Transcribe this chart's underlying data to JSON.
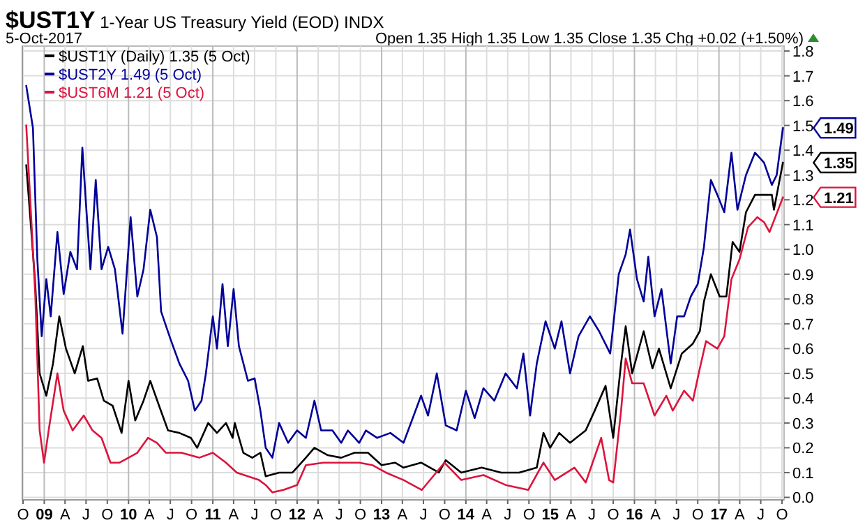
{
  "chart_data": {
    "type": "line",
    "title": "$UST1Y 1-Year US Treasury Yield (EOD) INDX",
    "subtitle": "5-Oct-2017",
    "annotations": [
      "Open 1.35 High 1.35 Low 1.35 Close 1.35 Chg +0.02 (+1.50%)",
      {
        "text": "1.49",
        "x": "2017-10-05",
        "y": 1.49
      },
      {
        "text": "1.35",
        "x": "2017-10-05",
        "y": 1.35
      },
      {
        "text": "1.21",
        "x": "2017-10-05",
        "y": 1.21
      }
    ],
    "legend": "top left",
    "grid": true,
    "line_style": "solid",
    "xlim": [
      "2008-09-28",
      "2017-10-10"
    ],
    "xticks": [
      {
        "value": "2008-10-01",
        "label": "O"
      },
      {
        "value": "2009-01-01",
        "label": "09"
      },
      {
        "value": "2009-04-01",
        "label": "A"
      },
      {
        "value": "2009-07-01",
        "label": "J"
      },
      {
        "value": "2009-10-01",
        "label": "O"
      },
      {
        "value": "2010-01-01",
        "label": "10"
      },
      {
        "value": "2010-04-01",
        "label": "A"
      },
      {
        "value": "2010-07-01",
        "label": "J"
      },
      {
        "value": "2010-10-01",
        "label": "O"
      },
      {
        "value": "2011-01-01",
        "label": "11"
      },
      {
        "value": "2011-04-01",
        "label": "A"
      },
      {
        "value": "2011-07-01",
        "label": "J"
      },
      {
        "value": "2011-10-01",
        "label": "O"
      },
      {
        "value": "2012-01-01",
        "label": "12"
      },
      {
        "value": "2012-04-01",
        "label": "A"
      },
      {
        "value": "2012-07-01",
        "label": "J"
      },
      {
        "value": "2012-10-01",
        "label": "O"
      },
      {
        "value": "2013-01-01",
        "label": "13"
      },
      {
        "value": "2013-04-01",
        "label": "A"
      },
      {
        "value": "2013-07-01",
        "label": "J"
      },
      {
        "value": "2013-10-01",
        "label": "O"
      },
      {
        "value": "2014-01-01",
        "label": "14"
      },
      {
        "value": "2014-04-01",
        "label": "A"
      },
      {
        "value": "2014-07-01",
        "label": "J"
      },
      {
        "value": "2014-10-01",
        "label": "O"
      },
      {
        "value": "2015-01-01",
        "label": "15"
      },
      {
        "value": "2015-04-01",
        "label": "A"
      },
      {
        "value": "2015-07-01",
        "label": "J"
      },
      {
        "value": "2015-10-01",
        "label": "O"
      },
      {
        "value": "2016-01-01",
        "label": "16"
      },
      {
        "value": "2016-04-01",
        "label": "A"
      },
      {
        "value": "2016-07-01",
        "label": "J"
      },
      {
        "value": "2016-10-01",
        "label": "O"
      },
      {
        "value": "2017-01-01",
        "label": "17"
      },
      {
        "value": "2017-04-01",
        "label": "A"
      },
      {
        "value": "2017-07-01",
        "label": "J"
      },
      {
        "value": "2017-10-01",
        "label": "O"
      }
    ],
    "ylim": [
      -0.01,
      1.82
    ],
    "yticks": [
      {
        "value": 0,
        "label": "0.0"
      },
      0.1,
      0.2,
      0.3,
      0.4,
      0.5,
      0.6,
      0.7,
      0.8,
      0.9,
      {
        "value": 1,
        "label": "1.0"
      },
      1.1,
      1.2,
      1.3,
      1.4,
      1.5,
      1.6,
      1.7,
      1.8
    ],
    "series": [
      {
        "name": "$UST1Y (Daily) 1.35 (5 Oct)",
        "color": "#000000",
        "x": [
          "2008-10-15",
          "2008-11-03",
          "2008-11-23",
          "2008-12-12",
          "2009-01-10",
          "2009-02-08",
          "2009-03-07",
          "2009-04-05",
          "2009-05-13",
          "2009-06-17",
          "2009-07-10",
          "2009-08-18",
          "2009-09-16",
          "2009-10-24",
          "2009-12-02",
          "2010-01-01",
          "2010-01-30",
          "2010-03-07",
          "2010-04-05",
          "2010-05-13",
          "2010-06-21",
          "2010-08-09",
          "2010-09-28",
          "2010-10-25",
          "2010-12-12",
          "2011-01-19",
          "2011-02-27",
          "2011-03-28",
          "2011-04-06",
          "2011-05-13",
          "2011-06-21",
          "2011-07-26",
          "2011-08-18",
          "2011-10-15",
          "2011-12-12",
          "2012-02-08",
          "2012-03-16",
          "2012-05-13",
          "2012-07-10",
          "2012-09-06",
          "2012-11-03",
          "2013-01-01",
          "2013-02-28",
          "2013-04-06",
          "2013-06-21",
          "2013-09-06",
          "2013-10-06",
          "2013-12-12",
          "2014-03-10",
          "2014-06-03",
          "2014-08-19",
          "2014-11-04",
          "2014-12-03",
          "2015-01-01",
          "2015-02-09",
          "2015-03-28",
          "2015-06-04",
          "2015-07-13",
          "2015-08-29",
          "2015-10-01",
          "2015-11-04",
          "2015-11-24",
          "2015-12-22",
          "2016-02-10",
          "2016-03-19",
          "2016-04-16",
          "2016-06-06",
          "2016-07-24",
          "2016-09-10",
          "2016-10-10",
          "2016-10-28",
          "2016-11-27",
          "2017-01-04",
          "2017-02-02",
          "2017-03-01",
          "2017-03-31",
          "2017-04-28",
          "2017-06-06",
          "2017-07-15",
          "2017-08-18",
          "2017-08-27",
          "2017-10-05"
        ],
        "values": [
          1.34,
          1.11,
          0.86,
          0.5,
          0.41,
          0.54,
          0.73,
          0.6,
          0.5,
          0.61,
          0.47,
          0.48,
          0.39,
          0.37,
          0.26,
          0.47,
          0.31,
          0.39,
          0.47,
          0.37,
          0.27,
          0.26,
          0.24,
          0.2,
          0.3,
          0.26,
          0.3,
          0.24,
          0.3,
          0.18,
          0.16,
          0.18,
          0.085,
          0.1,
          0.1,
          0.16,
          0.2,
          0.17,
          0.16,
          0.18,
          0.18,
          0.13,
          0.14,
          0.12,
          0.14,
          0.1,
          0.15,
          0.1,
          0.12,
          0.1,
          0.1,
          0.12,
          0.26,
          0.2,
          0.26,
          0.22,
          0.27,
          0.35,
          0.45,
          0.24,
          0.54,
          0.69,
          0.5,
          0.67,
          0.52,
          0.6,
          0.44,
          0.58,
          0.62,
          0.67,
          0.79,
          0.9,
          0.81,
          0.81,
          1.03,
          0.99,
          1.15,
          1.22,
          1.22,
          1.22,
          1.16,
          1.35
        ]
      },
      {
        "name": "$UST2Y 1.49 (5 Oct)",
        "color": "#000099",
        "x": [
          "2008-10-15",
          "2008-11-13",
          "2008-12-02",
          "2008-12-21",
          "2009-01-10",
          "2009-01-29",
          "2009-02-27",
          "2009-03-26",
          "2009-04-24",
          "2009-05-23",
          "2009-06-15",
          "2009-07-01",
          "2009-07-20",
          "2009-08-12",
          "2009-09-06",
          "2009-10-05",
          "2009-11-03",
          "2009-12-06",
          "2010-01-10",
          "2010-02-08",
          "2010-03-07",
          "2010-04-05",
          "2010-05-04",
          "2010-05-22",
          "2010-07-01",
          "2010-08-09",
          "2010-09-16",
          "2010-10-15",
          "2010-11-13",
          "2010-12-02",
          "2011-01-01",
          "2011-01-19",
          "2011-02-12",
          "2011-03-07",
          "2011-04-01",
          "2011-04-24",
          "2011-06-02",
          "2011-07-01",
          "2011-07-26",
          "2011-08-18",
          "2011-09-16",
          "2011-10-15",
          "2011-11-23",
          "2012-01-01",
          "2012-02-08",
          "2012-03-16",
          "2012-04-14",
          "2012-06-02",
          "2012-07-10",
          "2012-08-08",
          "2012-09-26",
          "2012-10-25",
          "2012-12-12",
          "2013-02-08",
          "2013-04-06",
          "2013-06-21",
          "2013-07-21",
          "2013-08-28",
          "2013-10-06",
          "2013-11-22",
          "2014-01-01",
          "2014-02-08",
          "2014-03-18",
          "2014-05-04",
          "2014-06-22",
          "2014-08-10",
          "2014-09-07",
          "2014-10-06",
          "2014-11-04",
          "2014-12-12",
          "2015-01-21",
          "2015-02-19",
          "2015-03-28",
          "2015-05-04",
          "2015-06-22",
          "2015-08-01",
          "2015-09-18",
          "2015-10-25",
          "2015-11-24",
          "2015-12-13",
          "2016-01-12",
          "2016-02-10",
          "2016-03-01",
          "2016-03-28",
          "2016-04-27",
          "2016-06-06",
          "2016-07-04",
          "2016-08-03",
          "2016-09-01",
          "2016-10-01",
          "2016-10-28",
          "2016-11-27",
          "2016-12-25",
          "2017-01-24",
          "2017-02-24",
          "2017-03-22",
          "2017-04-28",
          "2017-06-06",
          "2017-07-15",
          "2017-08-18",
          "2017-09-08",
          "2017-10-05"
        ],
        "values": [
          1.66,
          1.49,
          0.96,
          0.65,
          0.88,
          0.73,
          1.07,
          0.82,
          0.99,
          0.92,
          1.41,
          1.18,
          0.92,
          1.28,
          0.92,
          1.01,
          0.92,
          0.66,
          1.13,
          0.81,
          0.92,
          1.16,
          1.05,
          0.75,
          0.64,
          0.54,
          0.47,
          0.35,
          0.39,
          0.5,
          0.73,
          0.6,
          0.86,
          0.61,
          0.84,
          0.61,
          0.47,
          0.48,
          0.35,
          0.2,
          0.16,
          0.3,
          0.22,
          0.27,
          0.24,
          0.39,
          0.27,
          0.27,
          0.22,
          0.27,
          0.22,
          0.27,
          0.24,
          0.26,
          0.22,
          0.41,
          0.33,
          0.5,
          0.29,
          0.27,
          0.43,
          0.32,
          0.44,
          0.39,
          0.5,
          0.44,
          0.58,
          0.33,
          0.54,
          0.71,
          0.6,
          0.71,
          0.5,
          0.65,
          0.73,
          0.67,
          0.58,
          0.9,
          0.98,
          1.08,
          0.88,
          0.79,
          0.97,
          0.73,
          0.84,
          0.54,
          0.73,
          0.73,
          0.81,
          0.86,
          1.01,
          1.28,
          1.22,
          1.15,
          1.39,
          1.16,
          1.3,
          1.39,
          1.35,
          1.26,
          1.3,
          1.49
        ]
      },
      {
        "name": "$UST6M 1.21 (5 Oct)",
        "color": "#dc143c",
        "x": [
          "2008-10-15",
          "2008-11-23",
          "2008-12-12",
          "2008-12-31",
          "2009-01-20",
          "2009-02-27",
          "2009-03-26",
          "2009-05-04",
          "2009-06-21",
          "2009-07-29",
          "2009-09-06",
          "2009-10-15",
          "2009-11-23",
          "2010-01-01",
          "2010-02-08",
          "2010-03-26",
          "2010-05-04",
          "2010-06-12",
          "2010-08-18",
          "2010-11-03",
          "2011-01-01",
          "2011-02-27",
          "2011-04-15",
          "2011-06-02",
          "2011-07-20",
          "2011-08-18",
          "2011-09-16",
          "2011-11-03",
          "2012-01-01",
          "2012-02-08",
          "2012-04-24",
          "2012-07-10",
          "2012-09-26",
          "2012-11-23",
          "2013-01-20",
          "2013-04-06",
          "2013-06-24",
          "2013-09-30",
          "2013-12-12",
          "2014-03-18",
          "2014-06-22",
          "2014-09-28",
          "2014-12-03",
          "2015-01-21",
          "2015-04-16",
          "2015-06-04",
          "2015-08-10",
          "2015-09-13",
          "2015-10-01",
          "2015-11-04",
          "2015-11-24",
          "2015-12-22",
          "2016-02-10",
          "2016-03-28",
          "2016-05-18",
          "2016-06-15",
          "2016-08-03",
          "2016-09-10",
          "2016-10-10",
          "2016-11-06",
          "2016-12-25",
          "2017-01-24",
          "2017-02-24",
          "2017-03-31",
          "2017-05-07",
          "2017-06-16",
          "2017-07-15",
          "2017-08-08",
          "2017-10-05"
        ],
        "values": [
          1.5,
          0.82,
          0.27,
          0.14,
          0.27,
          0.5,
          0.35,
          0.27,
          0.33,
          0.27,
          0.24,
          0.14,
          0.14,
          0.16,
          0.18,
          0.24,
          0.22,
          0.18,
          0.18,
          0.16,
          0.18,
          0.14,
          0.1,
          0.085,
          0.07,
          0.05,
          0.02,
          0.03,
          0.05,
          0.13,
          0.14,
          0.14,
          0.14,
          0.13,
          0.1,
          0.07,
          0.03,
          0.14,
          0.07,
          0.09,
          0.05,
          0.03,
          0.14,
          0.07,
          0.12,
          0.06,
          0.24,
          0.07,
          0.06,
          0.35,
          0.56,
          0.46,
          0.46,
          0.33,
          0.41,
          0.35,
          0.43,
          0.39,
          0.52,
          0.63,
          0.6,
          0.65,
          0.88,
          0.96,
          1.09,
          1.13,
          1.11,
          1.07,
          1.21
        ]
      }
    ]
  }
}
